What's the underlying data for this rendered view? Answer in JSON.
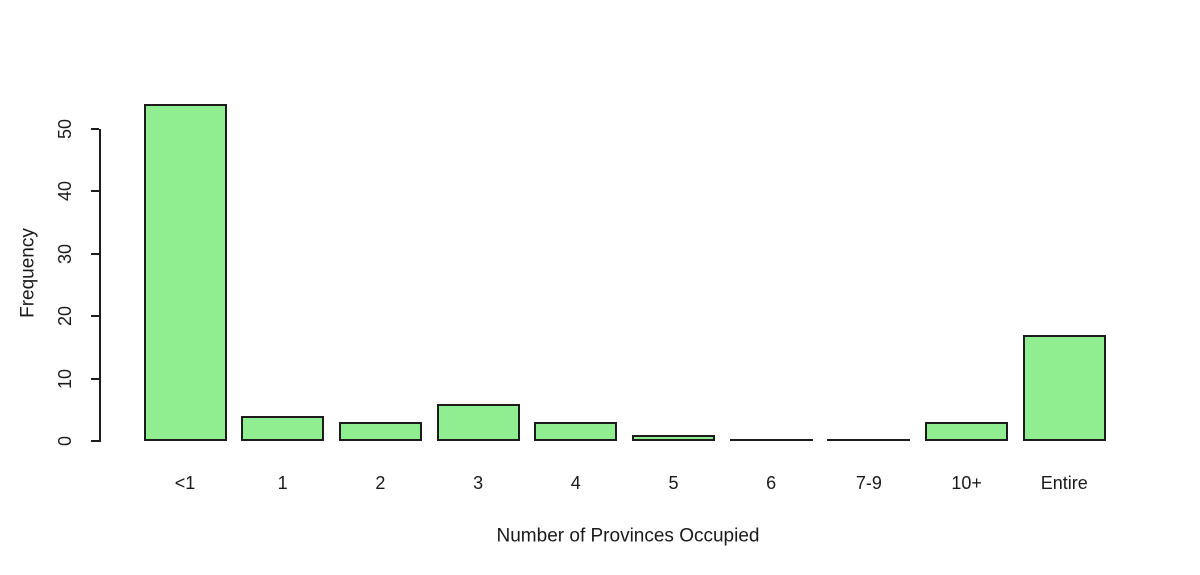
{
  "chart_data": {
    "type": "bar",
    "categories": [
      "<1",
      "1",
      "2",
      "3",
      "4",
      "5",
      "6",
      "7-9",
      "10+",
      "Entire"
    ],
    "values": [
      54,
      4,
      3,
      6,
      3,
      1,
      0,
      0,
      3,
      17
    ],
    "title": "",
    "xlabel": "Number of Provinces Occupied",
    "ylabel": "Frequency",
    "ylim": [
      0,
      55
    ],
    "y_ticks": [
      0,
      10,
      20,
      30,
      40,
      50
    ],
    "grid": false,
    "legend": null,
    "bar_fill_color": "#90EE90",
    "bar_border_color": "#1c1c1c",
    "axis_color": "#1c1c1c",
    "text_color": "#1a1a1a"
  }
}
